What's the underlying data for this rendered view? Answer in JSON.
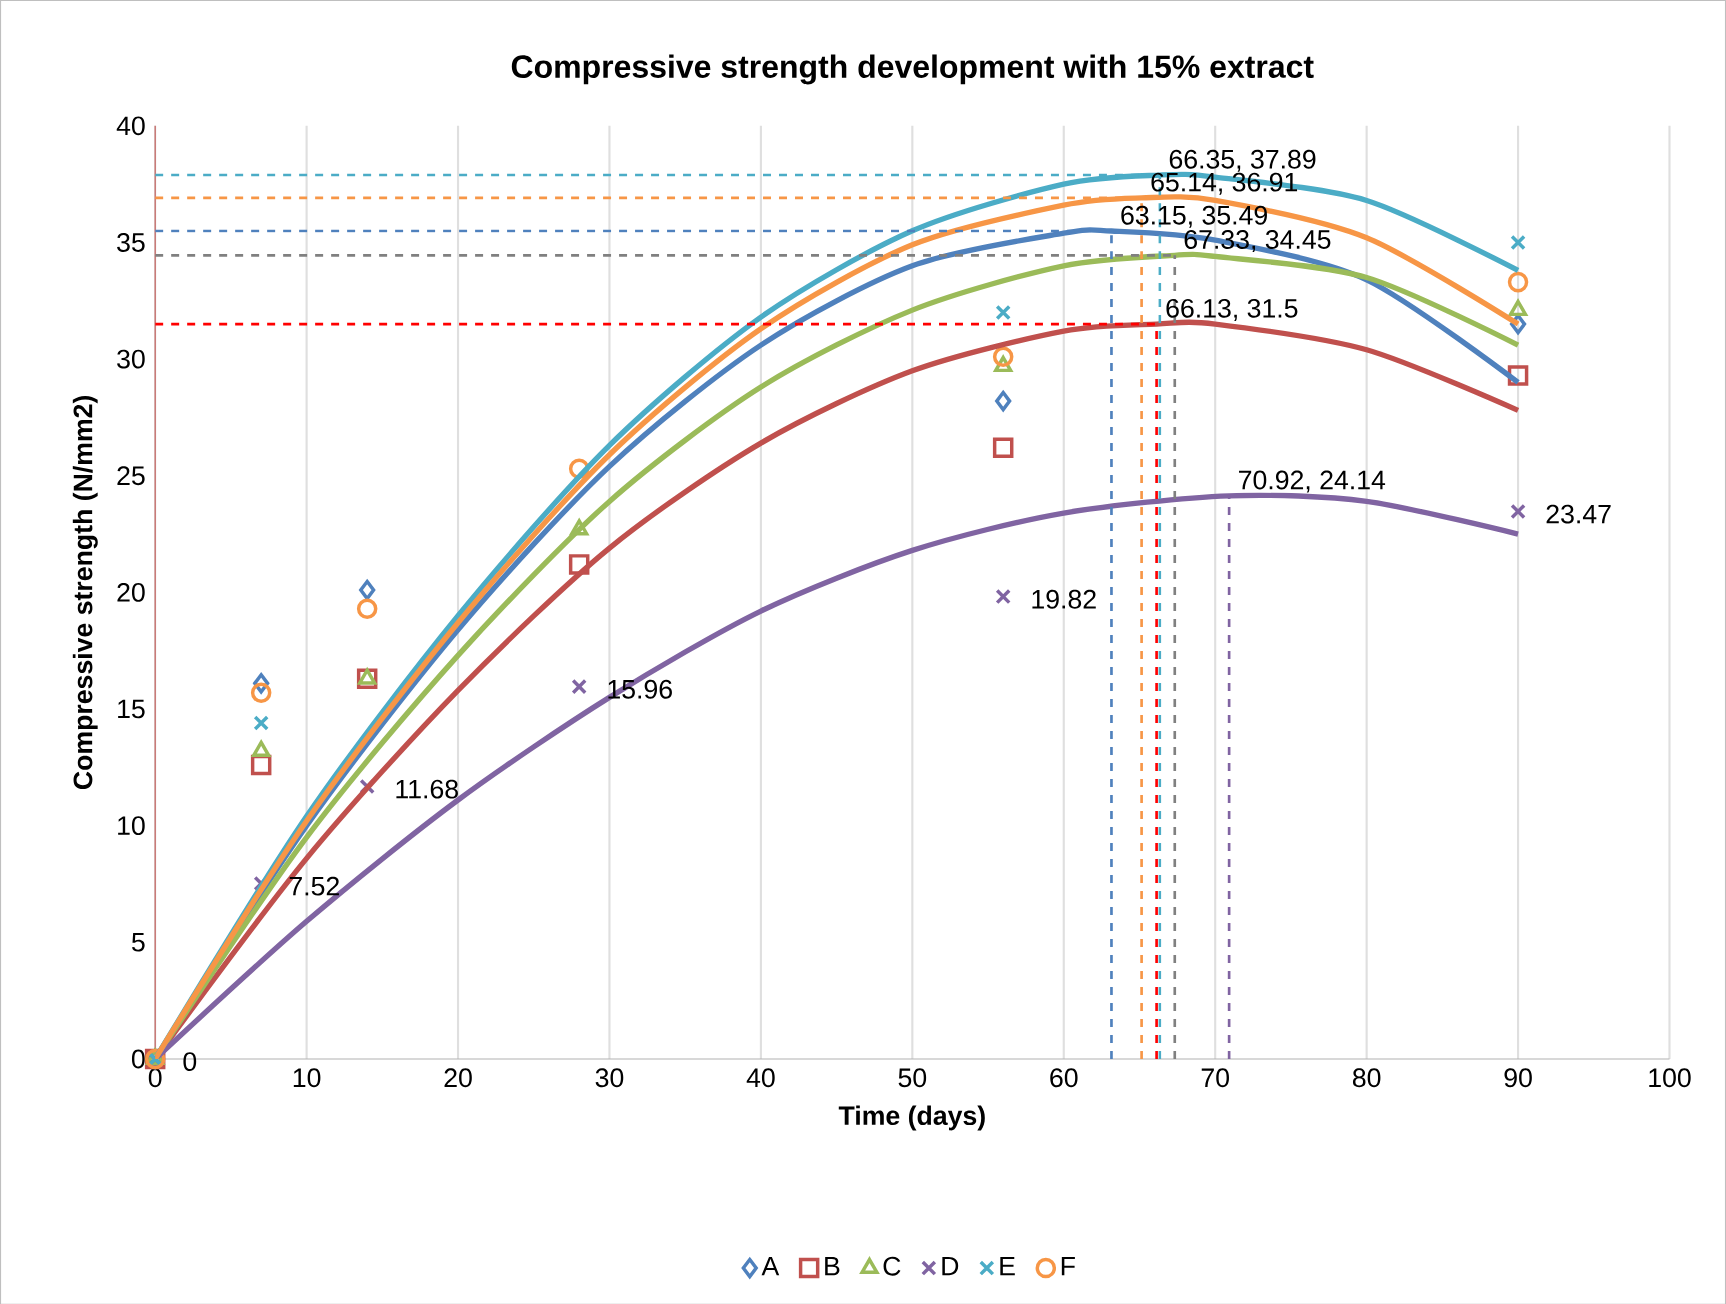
{
  "chart_data": {
    "type": "scatter",
    "title": "Compressive strength development with 15% extract",
    "xlabel": "Time  (days)",
    "ylabel": "Compressive strength (N/mm2)",
    "x": [
      0,
      7,
      14,
      28,
      56,
      90
    ],
    "series": [
      {
        "name": "A",
        "color": "#4f81bd",
        "marker": "diamond",
        "values": [
          0,
          16.1,
          20.1,
          null,
          28.2,
          31.5
        ]
      },
      {
        "name": "B",
        "color": "#c0504d",
        "marker": "square",
        "values": [
          0,
          12.6,
          16.3,
          21.2,
          26.2,
          29.3
        ]
      },
      {
        "name": "C",
        "color": "#9bbb59",
        "marker": "triangle",
        "values": [
          0,
          13.2,
          16.3,
          22.7,
          29.7,
          32.1
        ]
      },
      {
        "name": "D",
        "color": "#8064a2",
        "marker": "cross",
        "values": [
          0,
          7.52,
          11.68,
          15.96,
          19.82,
          23.47
        ],
        "value_labels": [
          "0",
          "7.52",
          "11.68",
          "15.96",
          "19.82",
          "23.47"
        ]
      },
      {
        "name": "E",
        "color": "#4bacc6",
        "marker": "cross",
        "values": [
          0,
          14.4,
          null,
          null,
          32.0,
          35.0
        ]
      },
      {
        "name": "F",
        "color": "#f79646",
        "marker": "circle",
        "values": [
          0,
          15.7,
          19.3,
          25.3,
          30.1,
          33.3
        ]
      },
      {
        "type": "line",
        "color": "#4f81bd",
        "x": [
          0,
          10,
          20,
          30,
          40,
          50,
          60,
          63.15,
          70,
          80,
          90
        ],
        "values": [
          0,
          10.0,
          18.4,
          25.4,
          30.6,
          34.0,
          35.4,
          35.49,
          35.1,
          33.4,
          29.0
        ]
      },
      {
        "type": "line",
        "color": "#c0504d",
        "x": [
          0,
          10,
          20,
          30,
          40,
          50,
          60,
          66.13,
          70,
          80,
          90
        ],
        "values": [
          0,
          8.6,
          15.8,
          21.9,
          26.4,
          29.5,
          31.2,
          31.5,
          31.5,
          30.4,
          27.8
        ]
      },
      {
        "type": "line",
        "color": "#9bbb59",
        "x": [
          0,
          10,
          20,
          30,
          40,
          50,
          60,
          67.33,
          70,
          80,
          90
        ],
        "values": [
          0,
          9.5,
          17.3,
          23.9,
          28.8,
          32.1,
          34.0,
          34.45,
          34.4,
          33.5,
          30.6
        ]
      },
      {
        "type": "line",
        "color": "#8064a2",
        "x": [
          0,
          10,
          20,
          30,
          40,
          50,
          60,
          70.92,
          80,
          90
        ],
        "values": [
          0,
          5.9,
          11.1,
          15.5,
          19.2,
          21.8,
          23.4,
          24.14,
          23.9,
          22.5
        ]
      },
      {
        "type": "line",
        "color": "#4bacc6",
        "x": [
          0,
          10,
          20,
          30,
          40,
          50,
          60,
          66.35,
          70,
          80,
          90
        ],
        "values": [
          0,
          10.4,
          19.0,
          26.3,
          31.8,
          35.5,
          37.5,
          37.89,
          37.8,
          36.8,
          33.8
        ]
      },
      {
        "type": "line",
        "color": "#f79646",
        "x": [
          0,
          10,
          20,
          30,
          40,
          50,
          60,
          65.14,
          70,
          80,
          90
        ],
        "values": [
          0,
          10.2,
          18.7,
          25.9,
          31.3,
          34.9,
          36.6,
          36.91,
          36.8,
          35.2,
          31.5
        ]
      },
      {
        "type": "line",
        "line_style": "dashed",
        "color": "#4bacc6",
        "x": [
          0,
          66.35
        ],
        "values": [
          37.89,
          37.89
        ]
      },
      {
        "type": "line",
        "line_style": "dashed",
        "color": "#f79646",
        "x": [
          0,
          65.14
        ],
        "values": [
          36.91,
          36.91
        ]
      },
      {
        "type": "line",
        "line_style": "dashed",
        "color": "#4f81bd",
        "x": [
          0,
          63.15
        ],
        "values": [
          35.49,
          35.49
        ]
      },
      {
        "type": "line",
        "line_style": "dashed",
        "color": "#808080",
        "x": [
          0,
          67.33
        ],
        "values": [
          34.45,
          34.45
        ]
      },
      {
        "type": "line",
        "line_style": "dashed",
        "color": "#ff0000",
        "x": [
          0,
          66.13
        ],
        "values": [
          31.5,
          31.5
        ]
      },
      {
        "type": "line",
        "line_style": "dashed",
        "color": "#4f81bd",
        "x": [
          63.15,
          63.15
        ],
        "values": [
          0,
          35.49
        ]
      },
      {
        "type": "line",
        "line_style": "dashed",
        "color": "#f79646",
        "x": [
          65.14,
          65.14
        ],
        "values": [
          0,
          36.91
        ]
      },
      {
        "type": "line",
        "line_style": "dashed",
        "color": "#ff0000",
        "x": [
          66.13,
          66.13
        ],
        "values": [
          0,
          31.5
        ]
      },
      {
        "type": "line",
        "line_style": "dashed",
        "color": "#4bacc6",
        "x": [
          66.35,
          66.35
        ],
        "values": [
          0,
          37.89
        ]
      },
      {
        "type": "line",
        "line_style": "dashed",
        "color": "#808080",
        "x": [
          67.33,
          67.33
        ],
        "values": [
          0,
          34.45
        ]
      },
      {
        "type": "line",
        "line_style": "dashed",
        "color": "#8064a2",
        "x": [
          70.92,
          70.92
        ],
        "values": [
          0,
          24.14
        ]
      }
    ],
    "annotations": [
      {
        "text": "66.35, 37.89",
        "x": 66.35,
        "y": 37.89
      },
      {
        "text": "65.14, 36.91",
        "x": 65.14,
        "y": 36.91
      },
      {
        "text": "63.15, 35.49",
        "x": 63.15,
        "y": 35.49
      },
      {
        "text": "67.33, 34.45",
        "x": 67.33,
        "y": 34.45
      },
      {
        "text": "66.13, 31.5",
        "x": 66.13,
        "y": 31.5
      },
      {
        "text": "70.92, 24.14",
        "x": 70.92,
        "y": 24.14
      }
    ],
    "xlim": [
      0,
      100
    ],
    "xticks": [
      0,
      10,
      20,
      30,
      40,
      50,
      60,
      70,
      80,
      90,
      100
    ],
    "ylim": [
      0,
      40
    ],
    "yticks": [
      0,
      5,
      10,
      15,
      20,
      25,
      30,
      35,
      40
    ],
    "grid": "x",
    "legend": "bottom"
  }
}
